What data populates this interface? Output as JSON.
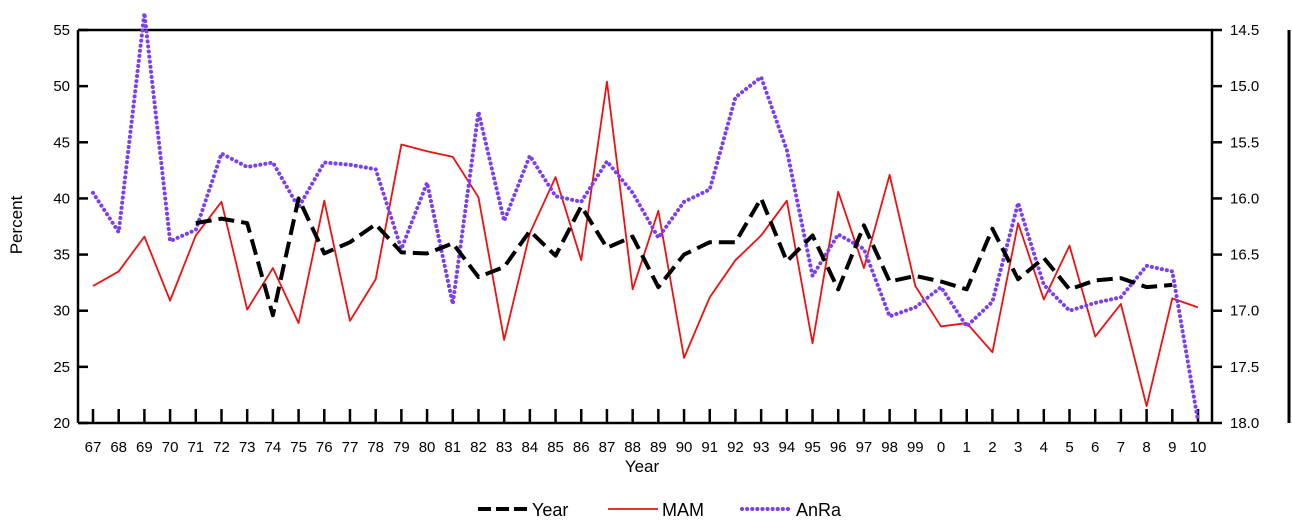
{
  "chart_data": {
    "type": "line",
    "xlabel": "Year",
    "ylabel": "Percent",
    "ylim": [
      20,
      55
    ],
    "y2lim": [
      14.5,
      18.0
    ],
    "y2_inverted": true,
    "yticks": [
      "20",
      "25",
      "30",
      "35",
      "40",
      "45",
      "50",
      "55"
    ],
    "y2ticks": [
      "14.5",
      "15.0",
      "15.5",
      "16.0",
      "16.5",
      "17.0",
      "17.5",
      "18.0"
    ],
    "categories": [
      "67",
      "68",
      "69",
      "70",
      "71",
      "72",
      "73",
      "74",
      "75",
      "76",
      "77",
      "78",
      "79",
      "80",
      "81",
      "82",
      "83",
      "84",
      "85",
      "86",
      "87",
      "88",
      "89",
      "90",
      "91",
      "92",
      "93",
      "94",
      "95",
      "96",
      "97",
      "98",
      "99",
      "0",
      "1",
      "2",
      "3",
      "4",
      "5",
      "6",
      "7",
      "8",
      "9",
      "10"
    ],
    "legend_position": "bottom-center",
    "grid": false,
    "series": [
      {
        "name": "Year",
        "axis": "left",
        "color": "#000000",
        "style": "dashed",
        "values": [
          null,
          null,
          null,
          null,
          37.8,
          38.2,
          37.8,
          29.6,
          40.0,
          35.1,
          36.1,
          37.7,
          35.2,
          35.1,
          36.0,
          33.0,
          33.9,
          37.1,
          34.9,
          39.3,
          35.6,
          36.6,
          32.1,
          35.0,
          36.1,
          36.1,
          40.0,
          34.4,
          36.7,
          31.9,
          37.6,
          32.6,
          33.1,
          32.6,
          31.9,
          37.3,
          32.8,
          34.7,
          31.9,
          32.7,
          32.9,
          32.1,
          32.3,
          null
        ]
      },
      {
        "name": "MAM",
        "axis": "left",
        "color": "#ee1111",
        "style": "solid",
        "values": [
          32.2,
          33.5,
          36.6,
          30.9,
          36.7,
          39.7,
          30.1,
          33.8,
          28.9,
          39.8,
          29.1,
          32.8,
          44.8,
          44.2,
          43.7,
          40.1,
          27.4,
          36.9,
          41.9,
          34.5,
          50.4,
          31.9,
          38.9,
          25.8,
          31.2,
          34.5,
          36.7,
          39.8,
          27.1,
          40.6,
          33.8,
          42.1,
          32.2,
          28.6,
          28.9,
          26.3,
          37.8,
          31.0,
          35.8,
          27.7,
          30.6,
          21.5,
          31.1,
          30.3
        ]
      },
      {
        "name": "AnRa",
        "axis": "right",
        "color": "#7b3ff2",
        "style": "dotted",
        "values": [
          15.95,
          16.3,
          14.35,
          16.38,
          16.28,
          15.6,
          15.72,
          15.68,
          16.08,
          15.68,
          15.7,
          15.74,
          16.45,
          15.86,
          16.94,
          15.23,
          16.2,
          15.62,
          15.98,
          16.03,
          15.67,
          15.95,
          16.35,
          16.03,
          15.92,
          15.1,
          14.92,
          15.57,
          16.69,
          16.32,
          16.45,
          17.05,
          16.97,
          16.79,
          17.14,
          16.92,
          16.04,
          16.77,
          17.0,
          16.93,
          16.88,
          16.6,
          16.65,
          17.98
        ]
      }
    ]
  }
}
